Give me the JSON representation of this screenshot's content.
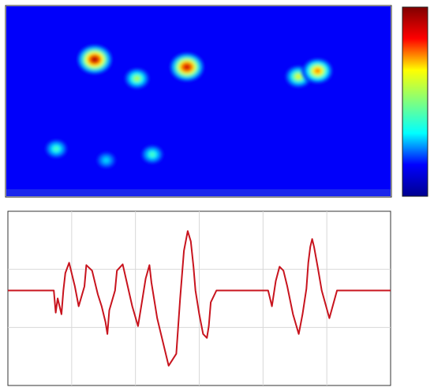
{
  "chart_data": [
    {
      "type": "heatmap",
      "title": "",
      "xlabel": "",
      "ylabel": "",
      "colormap": "jet",
      "colormap_stops": [
        "#00008f",
        "#0000ff",
        "#00ffff",
        "#7fff7f",
        "#ffff00",
        "#ff0000",
        "#800000"
      ],
      "background_value": 0.12,
      "value_range": [
        0,
        1
      ],
      "colorbar": "right",
      "grid": false,
      "hotspots": [
        {
          "x": 0.23,
          "y": 0.28,
          "peak": 0.95
        },
        {
          "x": 0.47,
          "y": 0.32,
          "peak": 0.92
        },
        {
          "x": 0.34,
          "y": 0.38,
          "peak": 0.55
        },
        {
          "x": 0.76,
          "y": 0.37,
          "peak": 0.6
        },
        {
          "x": 0.81,
          "y": 0.34,
          "peak": 0.75
        },
        {
          "x": 0.13,
          "y": 0.75,
          "peak": 0.45
        },
        {
          "x": 0.38,
          "y": 0.78,
          "peak": 0.45
        },
        {
          "x": 0.26,
          "y": 0.81,
          "peak": 0.35
        }
      ]
    },
    {
      "type": "line",
      "title": "",
      "xlabel": "",
      "ylabel": "",
      "xlim": [
        0,
        1
      ],
      "ylim": [
        -1.2,
        1.0
      ],
      "grid": true,
      "series": [
        {
          "color": "#c8141e",
          "x": [
            0.0,
            0.12,
            0.125,
            0.13,
            0.14,
            0.145,
            0.15,
            0.16,
            0.175,
            0.185,
            0.2,
            0.205,
            0.22,
            0.235,
            0.245,
            0.255,
            0.26,
            0.265,
            0.28,
            0.285,
            0.3,
            0.31,
            0.325,
            0.34,
            0.35,
            0.36,
            0.37,
            0.375,
            0.39,
            0.4,
            0.42,
            0.44,
            0.45,
            0.46,
            0.47,
            0.478,
            0.485,
            0.49,
            0.5,
            0.51,
            0.52,
            0.525,
            0.53,
            0.545,
            0.555,
            0.565,
            0.58,
            0.59,
            0.6,
            0.612,
            0.635,
            0.68,
            0.69,
            0.7,
            0.71,
            0.72,
            0.73,
            0.745,
            0.76,
            0.77,
            0.78,
            0.785,
            0.79,
            0.795,
            0.8,
            0.81,
            0.82,
            0.84,
            0.86,
            1.0
          ],
          "y": [
            0.0,
            0.0,
            -0.28,
            -0.1,
            -0.3,
            0.0,
            0.22,
            0.35,
            0.05,
            -0.2,
            0.05,
            0.32,
            0.25,
            -0.05,
            -0.2,
            -0.4,
            -0.55,
            -0.25,
            0.0,
            0.25,
            0.33,
            0.12,
            -0.2,
            -0.45,
            -0.15,
            0.15,
            0.32,
            0.1,
            -0.35,
            -0.55,
            -0.95,
            -0.8,
            -0.1,
            0.5,
            0.75,
            0.62,
            0.3,
            0.0,
            -0.3,
            -0.55,
            -0.6,
            -0.45,
            -0.15,
            0.0,
            0.0,
            0.0,
            0.0,
            0.0,
            0.0,
            0.0,
            0.0,
            0.0,
            -0.2,
            0.12,
            0.3,
            0.25,
            0.05,
            -0.3,
            -0.55,
            -0.3,
            0.02,
            0.35,
            0.55,
            0.65,
            0.55,
            0.28,
            0.0,
            -0.35,
            0.0,
            0.0
          ]
        }
      ]
    }
  ]
}
